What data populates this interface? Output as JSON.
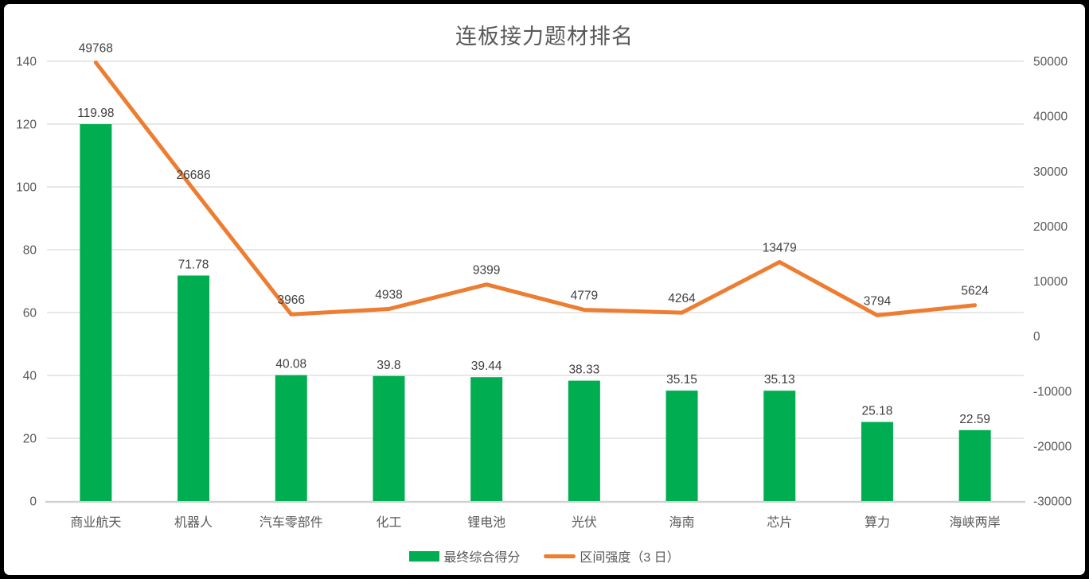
{
  "title": "连板接力题材排名",
  "colors": {
    "bar": "#00AD50",
    "line": "#ED7D31",
    "grid": "#D9D9D9",
    "axis_line": "#D1D1D1",
    "data_label": "#404040",
    "axis_text": "#595959",
    "border": "#000000",
    "background": "#FFFFFF"
  },
  "chart_data": {
    "type": "bar",
    "subtype": "combo-bar-line-dual-axis",
    "title": "连板接力题材排名",
    "categories": [
      "商业航天",
      "机器人",
      "汽车零部件",
      "化工",
      "锂电池",
      "光伏",
      "海南",
      "芯片",
      "算力",
      "海峡两岸"
    ],
    "series": [
      {
        "name": "最终综合得分",
        "type": "bar",
        "axis": "left",
        "color": "#00AD50",
        "values": [
          119.98,
          71.78,
          40.08,
          39.8,
          39.44,
          38.33,
          35.15,
          35.13,
          25.18,
          22.59
        ],
        "labels": [
          "119.98",
          "71.78",
          "40.08",
          "39.8",
          "39.44",
          "38.33",
          "35.15",
          "35.13",
          "25.18",
          "22.59"
        ]
      },
      {
        "name": "区间强度（3 日）",
        "type": "line",
        "axis": "right",
        "color": "#ED7D31",
        "values": [
          49768,
          26686,
          3966,
          4938,
          9399,
          4779,
          4264,
          13479,
          3794,
          5624
        ],
        "labels": [
          "49768",
          "26686",
          "3966",
          "4938",
          "9399",
          "4779",
          "4264",
          "13479",
          "3794",
          "5624"
        ]
      }
    ],
    "left_axis": {
      "min": 0,
      "max": 140,
      "step": 20,
      "ticks": [
        0,
        20,
        40,
        60,
        80,
        100,
        120,
        140
      ]
    },
    "right_axis": {
      "min": -30000,
      "max": 50000,
      "step": 10000,
      "ticks": [
        -30000,
        -20000,
        -10000,
        0,
        10000,
        20000,
        30000,
        40000,
        50000
      ]
    },
    "grid": true,
    "legend_position": "bottom",
    "xlabel": "",
    "ylabel": ""
  },
  "legend": {
    "items": [
      {
        "label": "最终综合得分",
        "swatch": "bar"
      },
      {
        "label": "区间强度（3 日）",
        "swatch": "line"
      }
    ]
  }
}
